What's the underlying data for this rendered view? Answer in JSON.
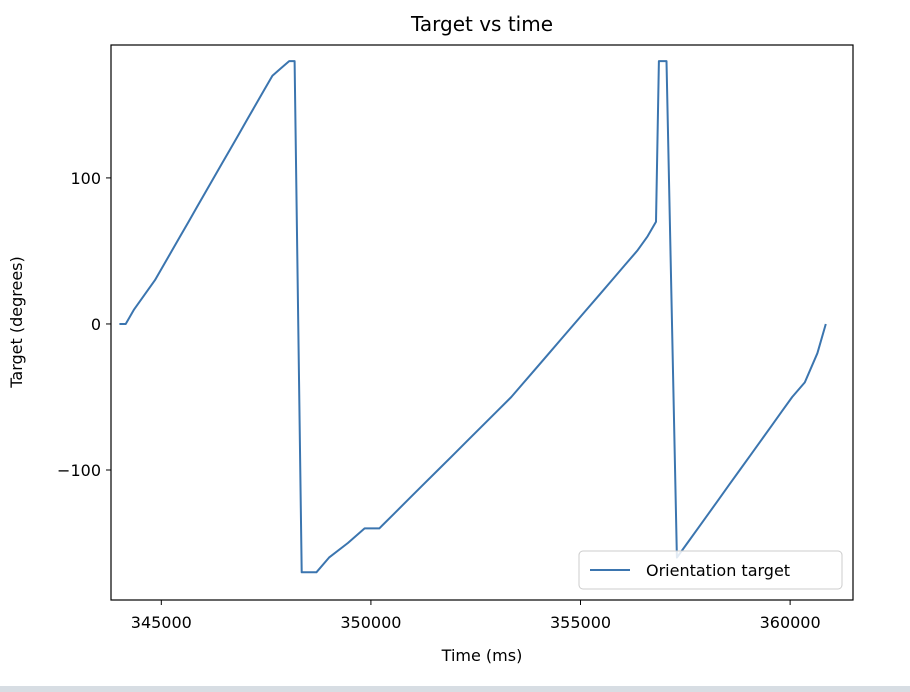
{
  "chart_data": {
    "type": "line",
    "title": "Target vs time",
    "xlabel": "Time (ms)",
    "ylabel": "Target (degrees)",
    "xlim": [
      343800,
      361500
    ],
    "ylim": [
      -189,
      191
    ],
    "xticks": [
      345000,
      350000,
      355000,
      360000
    ],
    "yticks": [
      -100,
      0,
      100
    ],
    "xtick_labels": [
      "345000",
      "350000",
      "355000",
      "360000"
    ],
    "ytick_labels": [
      "−100",
      "0",
      "100"
    ],
    "grid": false,
    "legend_position": "lower-right",
    "series": [
      {
        "name": "Orientation target",
        "color": "#3b75af",
        "x": [
          344000,
          344150,
          344350,
          344600,
          344850,
          345050,
          345250,
          345450,
          345650,
          345850,
          346050,
          346250,
          346450,
          346650,
          346850,
          347050,
          347250,
          347450,
          347650,
          347850,
          348050,
          348180,
          348350,
          348700,
          349000,
          349450,
          349850,
          350200,
          350550,
          350900,
          351250,
          351600,
          351950,
          352300,
          352650,
          353000,
          353350,
          353650,
          353950,
          354250,
          354550,
          354850,
          355150,
          355450,
          355750,
          356050,
          356350,
          356600,
          356800,
          356870,
          357050,
          357300,
          357550,
          357800,
          358050,
          358300,
          358550,
          358800,
          359050,
          359300,
          359550,
          359800,
          360050,
          360350,
          360650,
          360850
        ],
        "y": [
          0,
          0,
          10,
          20,
          30,
          40,
          50,
          60,
          70,
          80,
          90,
          100,
          110,
          120,
          130,
          140,
          150,
          160,
          170,
          175,
          180,
          180,
          -170,
          -170,
          -160,
          -150,
          -140,
          -140,
          -130,
          -120,
          -110,
          -100,
          -90,
          -80,
          -70,
          -60,
          -50,
          -40,
          -30,
          -20,
          -10,
          0,
          10,
          20,
          30,
          40,
          50,
          60,
          70,
          180,
          180,
          -160,
          -150,
          -140,
          -130,
          -120,
          -110,
          -100,
          -90,
          -80,
          -70,
          -60,
          -50,
          -40,
          -20,
          0
        ]
      }
    ]
  }
}
